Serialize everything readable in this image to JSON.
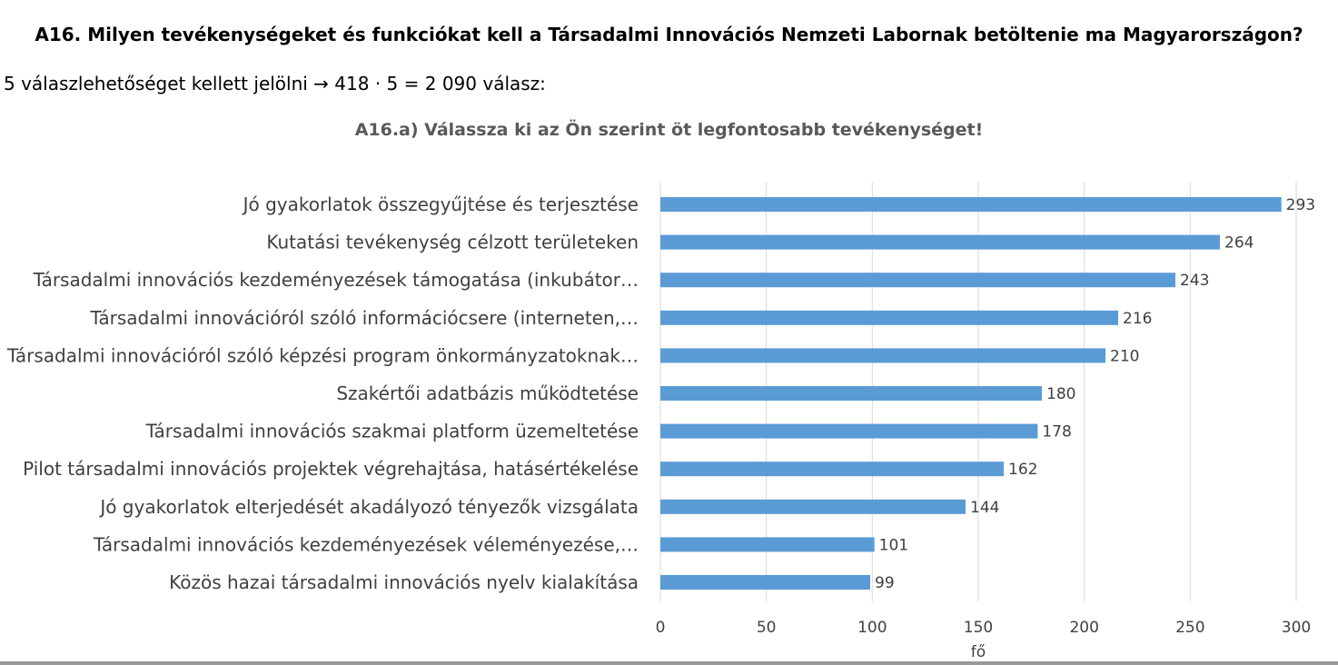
{
  "header": {
    "question": "A16. Milyen tevékenységeket és funkciókat kell a Társadalmi Innovációs Nemzeti Labornak betöltenie ma Magyarországon?",
    "subline": "5 válaszlehetőséget kellett jelölni → 418 · 5 = 2 090 válasz:"
  },
  "colors": {
    "bar": "#5b9bd5",
    "grid": "#d9d9d9",
    "label_text": "#404040",
    "tick_text": "#404040"
  },
  "chart_data": {
    "type": "bar",
    "orientation": "horizontal",
    "title": "A16.a) Válassza ki az Ön szerint öt legfontosabb tevékenységet!",
    "xlabel": "fő",
    "ylabel": "",
    "xlim": [
      0,
      300
    ],
    "xticks": [
      0,
      50,
      100,
      150,
      200,
      250,
      300
    ],
    "grid": true,
    "legend": "none",
    "categories": [
      "Jó gyakorlatok összegyűjtése és terjesztése",
      "Kutatási tevékenység célzott területeken",
      "Társadalmi innovációs kezdeményezések támogatása (inkubátor…",
      "Társadalmi innovációról szóló információcsere (interneten,…",
      "Társadalmi innovációról szóló képzési program önkormányzatoknak…",
      "Szakértői adatbázis működtetése",
      "Társadalmi innovációs szakmai platform üzemeltetése",
      "Pilot társadalmi innovációs projektek végrehajtása, hatásértékelése",
      "Jó gyakorlatok elterjedését akadályozó tényezők vizsgálata",
      "Társadalmi innovációs kezdeményezések véleményezése,…",
      "Közös hazai társadalmi innovációs nyelv kialakítása"
    ],
    "values": [
      293,
      264,
      243,
      216,
      210,
      180,
      178,
      162,
      144,
      101,
      99
    ]
  }
}
